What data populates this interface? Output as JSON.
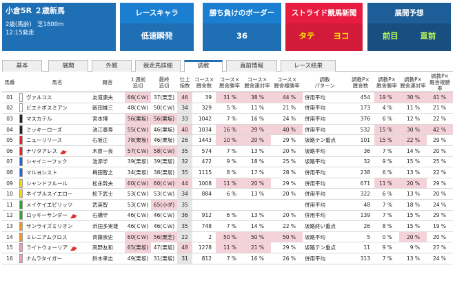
{
  "race": {
    "title": "小倉5R ２歳新馬",
    "conditions": "2歳(馬齢)　芝1800m",
    "start_time": "12:15発走"
  },
  "cards": {
    "character": {
      "label": "レースキャラ",
      "value": "低速瞬発"
    },
    "border": {
      "label": "勝ち負けのボーダー",
      "value": "36"
    },
    "stride": {
      "label": "ストライド競馬新聞",
      "value_a": "タテ",
      "value_b": "ヨコ"
    },
    "forecast": {
      "label": "展開予想",
      "value_a": "前目",
      "value_b": "直前"
    }
  },
  "colors": {
    "blue": "#1f6fb4",
    "red": "#e71c40",
    "highlight": "#f4d2d9",
    "gray": "#e6e6e6"
  },
  "tabs": [
    "基本",
    "展開",
    "外厩",
    "競走馬詳細",
    "調教",
    "直前情報",
    "レース結果"
  ],
  "active_tab": "調教",
  "headers": [
    "馬番",
    "",
    "馬名",
    "厩舎",
    "１週前\n追切",
    "最終\n追切",
    "仕上\n指数",
    "コース×\n厩舎数",
    "コース×\n厩舎勝率",
    "コース×\n厩舎連対率",
    "コース×\n厩舎複勝率",
    "調教\nパターン",
    "調教P×\n厩舎数",
    "調教P×\n厩舎勝率",
    "調教P×\n厩舎連対率",
    "調教P×\n厩舎複勝率"
  ],
  "rows": [
    {
      "no": "01",
      "waku": "#ffffff",
      "name": "ヴァルコス",
      "flag": false,
      "trainer": "友道康夫",
      "w1": "66(ＣＷ)",
      "w2": "37(栗芝)",
      "idx": "46",
      "cn": "39",
      "cw": "31 %",
      "cr": "38 %",
      "cf": "44 %",
      "pat": "併用平均",
      "pn": "454",
      "pw": "19 %",
      "pr": "30 %",
      "pf": "41 %"
    },
    {
      "no": "02",
      "waku": "#ffffff",
      "name": "ビエナボスミアン",
      "flag": false,
      "trainer": "飯田雄三",
      "w1": "48(ＣＷ)",
      "w2": "50(ＣＷ)",
      "idx": "34",
      "cn": "329",
      "cw": "5 %",
      "cr": "11 %",
      "cf": "21 %",
      "pat": "併用平均",
      "pn": "173",
      "pw": "4 %",
      "pr": "11 %",
      "pf": "21 %"
    },
    {
      "no": "03",
      "waku": "#222222",
      "name": "マスカテル",
      "flag": false,
      "trainer": "宮本博",
      "w1": "56(栗坂)",
      "w2": "56(栗坂)",
      "idx": "33",
      "cn": "1042",
      "cw": "7 %",
      "cr": "16 %",
      "cf": "24 %",
      "pat": "併用平均",
      "pn": "376",
      "pw": "6 %",
      "pr": "12 %",
      "pf": "22 %"
    },
    {
      "no": "04",
      "waku": "#222222",
      "name": "ミッキーローズ",
      "flag": false,
      "trainer": "池江泰寿",
      "w1": "55(ＣＷ)",
      "w2": "46(栗坂)",
      "idx": "40",
      "cn": "1034",
      "cw": "16 %",
      "cr": "29 %",
      "cf": "40 %",
      "pat": "併用平均",
      "pn": "532",
      "pw": "15 %",
      "pr": "30 %",
      "pf": "42 %"
    },
    {
      "no": "05",
      "waku": "#e8202a",
      "name": "ニューリリース",
      "flag": false,
      "trainer": "石坂正",
      "w1": "78(栗坂)",
      "w2": "46(栗坂)",
      "idx": "26",
      "cn": "1443",
      "cw": "10 %",
      "cr": "20 %",
      "cf": "29 %",
      "pat": "坂路テン重点",
      "pn": "101",
      "pw": "15 %",
      "pr": "22 %",
      "pf": "29 %"
    },
    {
      "no": "06",
      "waku": "#e8202a",
      "name": "ナリタアレス",
      "flag": true,
      "trainer": "木原一良",
      "w1": "57(ＣＷ)",
      "w2": "58(ＣＷ)",
      "idx": "35",
      "cn": "574",
      "cw": "7 %",
      "cr": "13 %",
      "cf": "20 %",
      "pat": "坂路平均",
      "pn": "36",
      "pw": "7 %",
      "pr": "14 %",
      "pf": "20 %"
    },
    {
      "no": "07",
      "waku": "#1c64d8",
      "name": "シャイニーフック",
      "flag": false,
      "trainer": "池添学",
      "w1": "39(栗坂)",
      "w2": "39(栗坂)",
      "idx": "32",
      "cn": "472",
      "cw": "9 %",
      "cr": "18 %",
      "cf": "25 %",
      "pat": "坂路平均",
      "pn": "32",
      "pw": "9 %",
      "pr": "15 %",
      "pf": "25 %"
    },
    {
      "no": "08",
      "waku": "#1c64d8",
      "name": "マルヨシスト",
      "flag": false,
      "trainer": "梅田智之",
      "w1": "34(栗坂)",
      "w2": "38(栗坂)",
      "idx": "35",
      "cn": "1115",
      "cw": "8 %",
      "cr": "17 %",
      "cf": "28 %",
      "pat": "併用平均",
      "pn": "238",
      "pw": "6 %",
      "pr": "13 %",
      "pf": "22 %"
    },
    {
      "no": "09",
      "waku": "#f5d90a",
      "name": "シャンドフルール",
      "flag": false,
      "trainer": "松永幹夫",
      "w1": "60(ＣＷ)",
      "w2": "60(ＣＷ)",
      "idx": "44",
      "cn": "1008",
      "cw": "11 %",
      "cr": "20 %",
      "cf": "29 %",
      "pat": "併用平均",
      "pn": "671",
      "pw": "11 %",
      "pr": "20 %",
      "pf": "29 %"
    },
    {
      "no": "10",
      "waku": "#f5d90a",
      "name": "ネイブルスイエロー",
      "flag": false,
      "trainer": "松下武士",
      "w1": "53(ＣＷ)",
      "w2": "53(ＣＷ)",
      "idx": "34",
      "cn": "884",
      "cw": "6 %",
      "cr": "13 %",
      "cf": "20 %",
      "pat": "併用平均",
      "pn": "322",
      "pw": "6 %",
      "pr": "13 %",
      "pf": "20 %"
    },
    {
      "no": "11",
      "waku": "#2aa52a",
      "name": "メイケイエピリッツ",
      "flag": false,
      "trainer": "武英智",
      "w1": "53(ＣＷ)",
      "w2": "65(小ダ)",
      "idx": "35",
      "cn": "",
      "cw": "",
      "cr": "",
      "cf": "",
      "pat": "併用平均",
      "pn": "48",
      "pw": "7 %",
      "pr": "18 %",
      "pf": "24 %"
    },
    {
      "no": "12",
      "waku": "#2aa52a",
      "name": "ロッキーサンダー",
      "flag": true,
      "trainer": "石橋守",
      "w1": "46(ＣＷ)",
      "w2": "46(ＣＷ)",
      "idx": "36",
      "cn": "912",
      "cw": "6 %",
      "cr": "13 %",
      "cf": "20 %",
      "pat": "併用平均",
      "pn": "139",
      "pw": "7 %",
      "pr": "15 %",
      "pf": "29 %"
    },
    {
      "no": "13",
      "waku": "#f59a1a",
      "name": "サンライズミリオン",
      "flag": false,
      "trainer": "浜田多実雄",
      "w1": "46(ＣＷ)",
      "w2": "46(ＣＷ)",
      "idx": "35",
      "cn": "748",
      "cw": "7 %",
      "cr": "14 %",
      "cf": "22 %",
      "pat": "坂路終い重点",
      "pn": "26",
      "pw": "8 %",
      "pr": "15 %",
      "pf": "19 %"
    },
    {
      "no": "14",
      "waku": "#f59a1a",
      "name": "ミレニアムクロス",
      "flag": false,
      "trainer": "斉藤崇史",
      "w1": "60(ＣＷ)",
      "w2": "56(栗芝)",
      "idx": "22",
      "cn": "2",
      "cw": "50 %",
      "cr": "50 %",
      "cf": "50 %",
      "pat": "坂路平均",
      "pn": "5",
      "pw": "0 %",
      "pr": "20 %",
      "pf": "20 %"
    },
    {
      "no": "15",
      "waku": "#f29ac4",
      "name": "ライトウォーリア",
      "flag": true,
      "trainer": "高野友和",
      "w1": "65(栗坂)",
      "w2": "47(栗坂)",
      "idx": "48",
      "cn": "1278",
      "cw": "11 %",
      "cr": "21 %",
      "cf": "29 %",
      "pat": "坂路テン重点",
      "pn": "11",
      "pw": "9 %",
      "pr": "9 %",
      "pf": "27 %"
    },
    {
      "no": "16",
      "waku": "#f29ac4",
      "name": "ナムラタイガー",
      "flag": false,
      "trainer": "鈴木孝志",
      "w1": "49(栗坂)",
      "w2": "31(栗坂)",
      "idx": "31",
      "cn": "812",
      "cw": "7 %",
      "cr": "16 %",
      "cf": "26 %",
      "pat": "併用平均",
      "pn": "313",
      "pw": "7 %",
      "pr": "13 %",
      "pf": "24 %"
    }
  ]
}
